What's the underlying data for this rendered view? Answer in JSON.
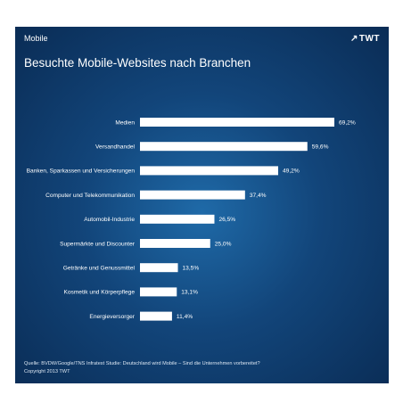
{
  "header": {
    "section": "Mobile",
    "brand": "TWT",
    "title": "Besuchte Mobile-Websites nach Branchen"
  },
  "chart_data": {
    "type": "bar",
    "orientation": "horizontal",
    "title": "Besuchte Mobile-Websites nach Branchen",
    "categories": [
      "Medien",
      "Versandhandel",
      "Banken, Sparkassen und Versicherungen",
      "Computer und Telekommunikation",
      "Automobil-Industrie",
      "Supermärkte und Discounter",
      "Getränke und Genussmittel",
      "Kosmetik und Körperpflege",
      "Energieversorger"
    ],
    "values": [
      69.2,
      59.6,
      49.2,
      37.4,
      26.5,
      25.0,
      13.5,
      13.1,
      11.4
    ],
    "value_labels": [
      "69,2%",
      "59,6%",
      "49,2%",
      "37,4%",
      "26,5%",
      "25,0%",
      "13,5%",
      "13,1%",
      "11,4%"
    ],
    "xlim": [
      0,
      69.2
    ],
    "bar_color": "#ffffff",
    "grid": false,
    "legend": "none"
  },
  "footer": {
    "source": "Quelle: BVDW/Google/TNS Infratest Studie: Deutschland wird Mobile – Sind die Unternehmen vorbereitet?",
    "copyright": "Copyright 2013 TWT"
  }
}
